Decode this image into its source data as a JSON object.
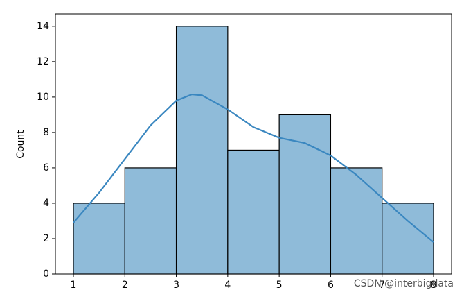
{
  "chart_data": {
    "type": "histogram",
    "ylabel": "Count",
    "bins": [
      1,
      2,
      3,
      4,
      5,
      6,
      7,
      8
    ],
    "values": [
      4,
      6,
      14,
      7,
      9,
      6,
      4
    ],
    "color": "#8fbbd9",
    "edgecolor": "#000000",
    "kde": {
      "color": "#3a87c0",
      "x": [
        1,
        1.5,
        2,
        2.5,
        3,
        3.3,
        3.5,
        4,
        4.5,
        5,
        5.5,
        6,
        6.5,
        7,
        7.5,
        8
      ],
      "values": [
        2.9,
        4.6,
        6.5,
        8.4,
        9.8,
        10.15,
        10.1,
        9.3,
        8.3,
        7.7,
        7.4,
        6.7,
        5.6,
        4.3,
        3.0,
        1.8
      ]
    },
    "xlim": [
      0.65,
      8.35
    ],
    "ylim": [
      0,
      14.7
    ],
    "xticks": [
      1,
      2,
      3,
      4,
      5,
      6,
      7,
      8
    ],
    "yticks": [
      0,
      2,
      4,
      6,
      8,
      10,
      12,
      14
    ],
    "watermark": "CSDN @interbigdata"
  }
}
